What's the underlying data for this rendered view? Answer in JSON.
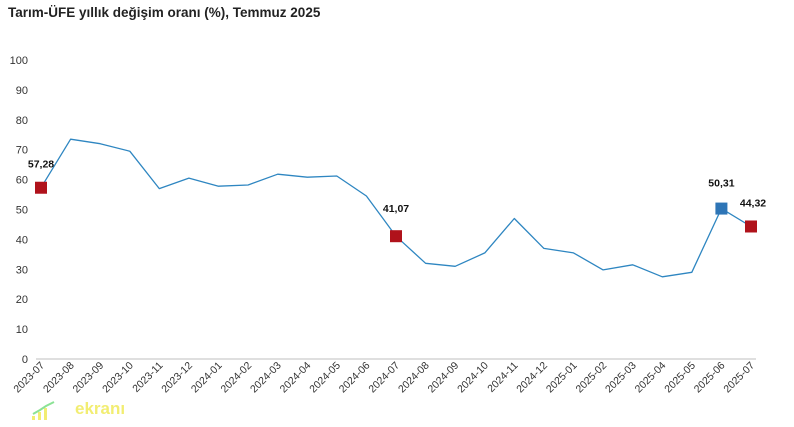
{
  "chart_data": {
    "type": "line",
    "title": "Tarım-ÜFE yıllık değişim oranı (%), Temmuz 2025",
    "xlabel": "",
    "ylabel": "",
    "ylim": [
      0,
      100
    ],
    "yticks": [
      0,
      10,
      20,
      30,
      40,
      50,
      60,
      70,
      80,
      90,
      100
    ],
    "grid": false,
    "categories": [
      "2023-07",
      "2023-08",
      "2023-09",
      "2023-10",
      "2023-11",
      "2023-12",
      "2024-01",
      "2024-02",
      "2024-03",
      "2024-04",
      "2024-05",
      "2024-06",
      "2024-07",
      "2024-08",
      "2024-09",
      "2024-10",
      "2024-11",
      "2024-12",
      "2025-01",
      "2025-02",
      "2025-03",
      "2025-04",
      "2025-05",
      "2025-06",
      "2025-07"
    ],
    "series": [
      {
        "color": "#2e86c1",
        "values": [
          57.28,
          73.5,
          72.0,
          69.5,
          57.0,
          60.5,
          57.8,
          58.2,
          61.8,
          60.8,
          61.2,
          54.5,
          41.07,
          32.0,
          31.0,
          35.5,
          47.0,
          37.0,
          35.5,
          29.8,
          31.5,
          27.5,
          29.0,
          50.31,
          44.32
        ]
      }
    ],
    "annotations": [
      {
        "index": 0,
        "label": "57,28",
        "marker_color": "#b0121b"
      },
      {
        "index": 12,
        "label": "41,07",
        "marker_color": "#b0121b"
      },
      {
        "index": 23,
        "label": "50,31",
        "marker_color": "#2e75b6"
      },
      {
        "index": 24,
        "label": "44,32",
        "marker_color": "#b0121b"
      }
    ]
  },
  "watermark": {
    "text": "ekranı"
  }
}
